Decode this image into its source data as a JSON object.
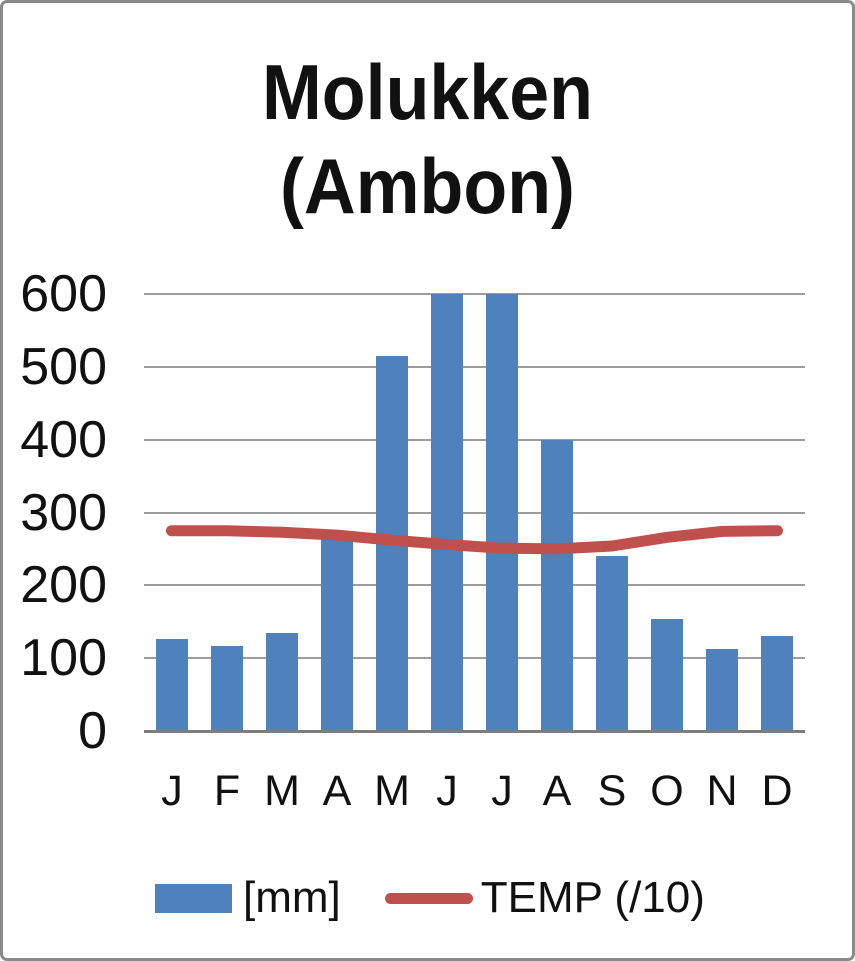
{
  "chart_data": {
    "type": "bar",
    "title": "Molukken (Ambon)",
    "title_lines": [
      "Molukken",
      "(Ambon)"
    ],
    "categories": [
      "J",
      "F",
      "M",
      "A",
      "M",
      "J",
      "J",
      "A",
      "S",
      "O",
      "N",
      "D"
    ],
    "series": [
      {
        "name": "[mm]",
        "type": "bar",
        "color": "#4F81BD",
        "values": [
          127,
          117,
          134,
          268,
          515,
          600,
          600,
          400,
          240,
          154,
          113,
          131
        ]
      },
      {
        "name": "TEMP (/10)",
        "type": "line",
        "color": "#C0504D",
        "values": [
          275,
          275,
          273,
          269,
          262,
          256,
          251,
          250,
          254,
          266,
          274,
          275
        ]
      }
    ],
    "xlabel": "",
    "ylabel": "",
    "ylim": [
      0,
      600
    ],
    "yticks": [
      600,
      500,
      400,
      300,
      200,
      100,
      0
    ],
    "grid": true,
    "legend_position": "bottom",
    "colors": {
      "gridline": "#9c9c9c",
      "axis": "#7d7d7d",
      "text": "#111111",
      "background": "#ffffff",
      "frame_border": "#8a8a8a"
    }
  }
}
